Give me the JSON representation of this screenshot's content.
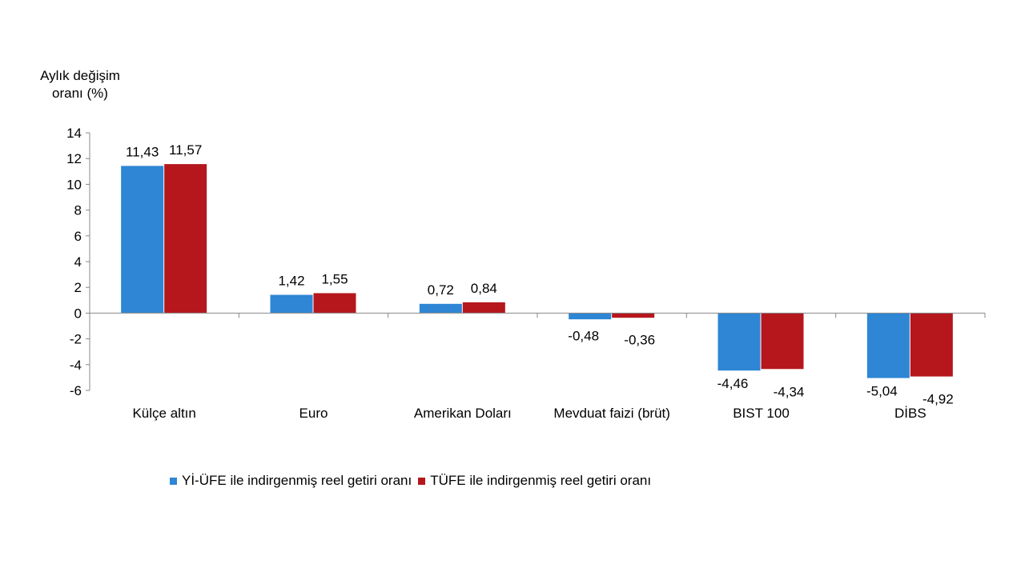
{
  "chart_data": {
    "type": "bar",
    "ylabel_lines": [
      "Aylık değişim",
      "oranı (%)"
    ],
    "categories": [
      "Külçe altın",
      "Euro",
      "Amerikan Doları",
      "Mevduat faizi (brüt)",
      "BIST 100",
      "DİBS"
    ],
    "ylim": [
      -6,
      14
    ],
    "yticks": [
      14,
      12,
      10,
      8,
      6,
      4,
      2,
      0,
      -2,
      -4,
      -6
    ],
    "grid": false,
    "legend_position": "bottom",
    "series": [
      {
        "name": "Yİ-ÜFE ile indirgenmiş reel getiri oranı",
        "color": "#2e86d4",
        "values": [
          11.43,
          1.42,
          0.72,
          -0.48,
          -4.46,
          -5.04
        ],
        "labels": [
          "11,43",
          "1,42",
          "0,72",
          "-0,48",
          "-4,46",
          "-5,04"
        ]
      },
      {
        "name": "TÜFE ile indirgenmiş reel getiri oranı",
        "color": "#b5171c",
        "values": [
          11.57,
          1.55,
          0.84,
          -0.36,
          -4.34,
          -4.92
        ],
        "labels": [
          "11,57",
          "1,55",
          "0,84",
          "-0,36",
          "-4,34",
          "-4,92"
        ]
      }
    ]
  }
}
